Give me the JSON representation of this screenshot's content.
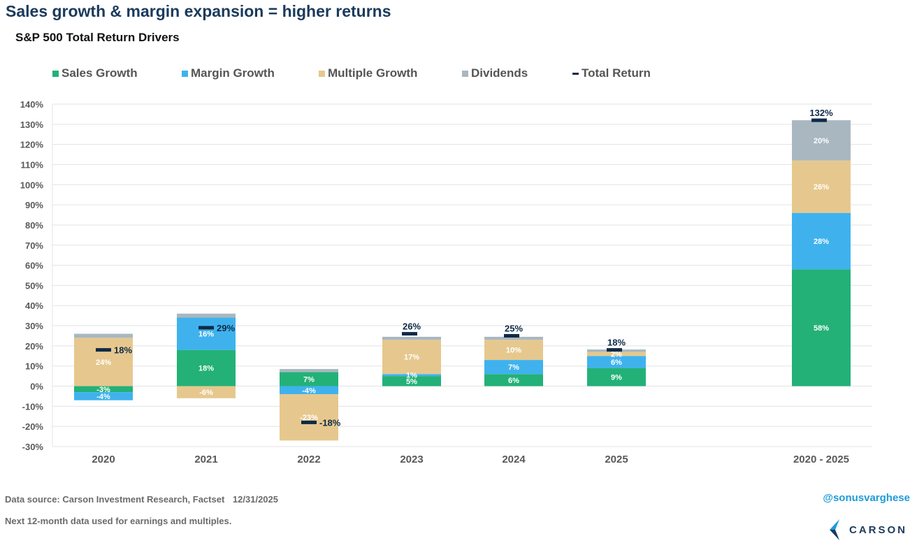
{
  "header": {
    "title": "Sales growth & margin expansion = higher returns",
    "subtitle": "S&P 500 Total Return Drivers"
  },
  "legend": [
    {
      "label": "Sales Growth",
      "color": "#23b178",
      "kind": "square"
    },
    {
      "label": "Margin Growth",
      "color": "#3fb2ee",
      "kind": "square"
    },
    {
      "label": "Multiple Growth",
      "color": "#e6c88e",
      "kind": "square"
    },
    {
      "label": "Dividends",
      "color": "#a9b7c0",
      "kind": "square"
    },
    {
      "label": "Total Return",
      "color": "#0e2a47",
      "kind": "line"
    }
  ],
  "chart_data": {
    "type": "bar",
    "stacked": true,
    "categories": [
      "2020",
      "2021",
      "2022",
      "2023",
      "2024",
      "2025",
      "2020 - 2025"
    ],
    "series": [
      {
        "name": "Sales Growth",
        "color": "#23b178",
        "values": [
          -3,
          18,
          7,
          5,
          6,
          9,
          58
        ],
        "labels": [
          "-3%",
          "18%",
          "7%",
          "5%",
          "6%",
          "9%",
          "58%"
        ]
      },
      {
        "name": "Margin Growth",
        "color": "#3fb2ee",
        "values": [
          -4,
          16,
          -4,
          1,
          7,
          6,
          28
        ],
        "labels": [
          "-4%",
          "16%",
          "-4%",
          "1%",
          "7%",
          "6%",
          "28%"
        ]
      },
      {
        "name": "Multiple Growth",
        "color": "#e6c88e",
        "values": [
          24,
          -6,
          -23,
          17,
          10,
          2,
          26
        ],
        "labels": [
          "24%",
          "-6%",
          "-23%",
          "17%",
          "10%",
          "2%",
          "26%"
        ]
      },
      {
        "name": "Dividends",
        "color": "#a9b7c0",
        "values": [
          2,
          2,
          1.5,
          1.5,
          1.5,
          1.2,
          20
        ],
        "labels": [
          "",
          "",
          "",
          "",
          "",
          "",
          "20%"
        ]
      }
    ],
    "total_return": {
      "name": "Total Return",
      "values": [
        18,
        29,
        -18,
        26,
        25,
        18,
        132
      ],
      "labels": [
        "18%",
        "29%",
        "-18%",
        "26%",
        "25%",
        "18%",
        "132%"
      ]
    },
    "ylim": [
      -30,
      140
    ],
    "yticks": [
      -30,
      -20,
      -10,
      0,
      10,
      20,
      30,
      40,
      50,
      60,
      70,
      80,
      90,
      100,
      110,
      120,
      130,
      140
    ],
    "ytick_labels": [
      "-30%",
      "-20%",
      "-10%",
      "0%",
      "10%",
      "20%",
      "30%",
      "40%",
      "50%",
      "60%",
      "70%",
      "80%",
      "90%",
      "100%",
      "110%",
      "120%",
      "130%",
      "140%"
    ],
    "grid": true,
    "legend_position": "top"
  },
  "footer": {
    "source": "Data source: Carson Investment Research, Factset",
    "date": "12/31/2025",
    "note": "Next 12-month data used for earnings and multiples.",
    "handle": "@sonusvarghese",
    "logo_text": "CARSON"
  }
}
